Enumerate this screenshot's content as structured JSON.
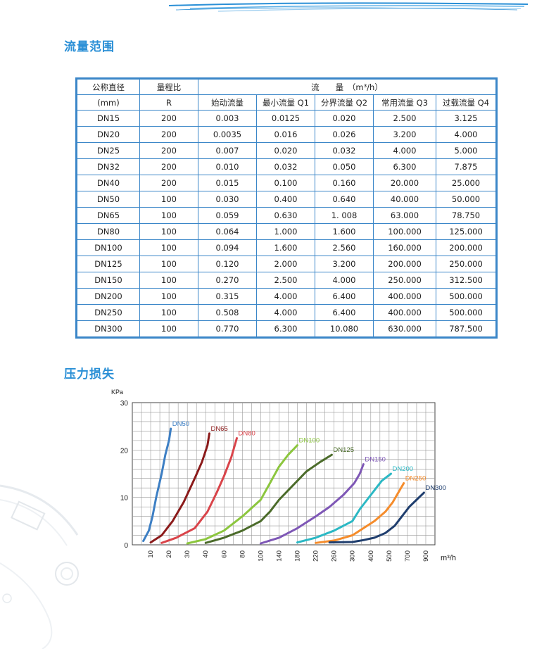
{
  "sections": {
    "flow_title": "流量范围",
    "pressure_title": "压力损失"
  },
  "table": {
    "header_row1": {
      "nominal_diameter": "公称直径",
      "range_ratio": "量程比",
      "flow": "流　　量　（m³/h）"
    },
    "header_row2": {
      "nominal_diameter_unit": "(mm)",
      "range_ratio_unit": "R",
      "cols": [
        "始动流量",
        "最小流量 Q1",
        "分界流量 Q2",
        "常用流量 Q3",
        "过载流量 Q4"
      ]
    },
    "rows": [
      [
        "DN15",
        "200",
        "0.003",
        "0.0125",
        "0.020",
        "2.500",
        "3.125"
      ],
      [
        "DN20",
        "200",
        "0.0035",
        "0.016",
        "0.026",
        "3.200",
        "4.000"
      ],
      [
        "DN25",
        "200",
        "0.007",
        "0.020",
        "0.032",
        "4.000",
        "5.000"
      ],
      [
        "DN32",
        "200",
        "0.010",
        "0.032",
        "0.050",
        "6.300",
        "7.875"
      ],
      [
        "DN40",
        "200",
        "0.015",
        "0.100",
        "0.160",
        "20.000",
        "25.000"
      ],
      [
        "DN50",
        "100",
        "0.030",
        "0.400",
        "0.640",
        "40.000",
        "50.000"
      ],
      [
        "DN65",
        "100",
        "0.059",
        "0.630",
        "1. 008",
        "63.000",
        "78.750"
      ],
      [
        "DN80",
        "100",
        "0.064",
        "1.000",
        "1.600",
        "100.000",
        "125.000"
      ],
      [
        "DN100",
        "100",
        "0.094",
        "1.600",
        "2.560",
        "160.000",
        "200.000"
      ],
      [
        "DN125",
        "100",
        "0.120",
        "2.000",
        "3.200",
        "200.000",
        "250.000"
      ],
      [
        "DN150",
        "100",
        "0.270",
        "2.500",
        "4.000",
        "250.000",
        "312.500"
      ],
      [
        "DN200",
        "100",
        "0.315",
        "4.000",
        "6.400",
        "400.000",
        "500.000"
      ],
      [
        "DN250",
        "100",
        "0.508",
        "4.000",
        "6.400",
        "400.000",
        "500.000"
      ],
      [
        "DN300",
        "100",
        "0.770",
        "6.300",
        "10.080",
        "630.000",
        "787.500"
      ]
    ]
  },
  "chart_data": {
    "type": "line",
    "title": "",
    "ylabel": "KPa",
    "xlabel": "m³/h",
    "ylim": [
      0,
      30
    ],
    "yticks": [
      "0",
      "10",
      "20",
      "30"
    ],
    "xticks": [
      "10",
      "20",
      "30",
      "40",
      "60",
      "80",
      "100",
      "140",
      "180",
      "220",
      "260",
      "300",
      "400",
      "500",
      "700",
      "900"
    ],
    "grid": true,
    "series": [
      {
        "name": "DN50",
        "color": "#3d7fc4",
        "points": [
          [
            6,
            0.8
          ],
          [
            9,
            3
          ],
          [
            11,
            6
          ],
          [
            13,
            10
          ],
          [
            16,
            15
          ],
          [
            18,
            19
          ],
          [
            20,
            22
          ],
          [
            21,
            24.5
          ]
        ]
      },
      {
        "name": "DN65",
        "color": "#8b1a1a",
        "points": [
          [
            10,
            0.5
          ],
          [
            16,
            2
          ],
          [
            22,
            5
          ],
          [
            28,
            9
          ],
          [
            34,
            14
          ],
          [
            38,
            17.5
          ],
          [
            42,
            21
          ],
          [
            44,
            23.5
          ]
        ]
      },
      {
        "name": "DN80",
        "color": "#d9444a",
        "points": [
          [
            16,
            0.4
          ],
          [
            24,
            1.5
          ],
          [
            34,
            3.5
          ],
          [
            42,
            7
          ],
          [
            52,
            11
          ],
          [
            60,
            14.5
          ],
          [
            68,
            18.5
          ],
          [
            74,
            22.5
          ]
        ]
      },
      {
        "name": "DN100",
        "color": "#8cc63e",
        "points": [
          [
            30,
            0.3
          ],
          [
            40,
            1.2
          ],
          [
            60,
            3
          ],
          [
            80,
            6
          ],
          [
            100,
            9.5
          ],
          [
            120,
            13
          ],
          [
            140,
            16.5
          ],
          [
            160,
            19
          ],
          [
            180,
            21
          ]
        ]
      },
      {
        "name": "DN125",
        "color": "#4b6b2a",
        "points": [
          [
            40,
            0.4
          ],
          [
            60,
            1.5
          ],
          [
            80,
            3
          ],
          [
            100,
            5
          ],
          [
            120,
            7
          ],
          [
            140,
            9.5
          ],
          [
            170,
            12.5
          ],
          [
            200,
            15.5
          ],
          [
            230,
            17.5
          ],
          [
            255,
            19
          ]
        ]
      },
      {
        "name": "DN150",
        "color": "#7e57b6",
        "points": [
          [
            100,
            0.3
          ],
          [
            140,
            1.5
          ],
          [
            180,
            3.5
          ],
          [
            220,
            6
          ],
          [
            250,
            8
          ],
          [
            280,
            10.5
          ],
          [
            310,
            13
          ],
          [
            340,
            15
          ],
          [
            360,
            17
          ]
        ]
      },
      {
        "name": "DN200",
        "color": "#2bb8c4",
        "points": [
          [
            180,
            0.5
          ],
          [
            220,
            1.5
          ],
          [
            260,
            3
          ],
          [
            300,
            5
          ],
          [
            340,
            7.5
          ],
          [
            380,
            9.5
          ],
          [
            420,
            11.5
          ],
          [
            460,
            13.5
          ],
          [
            520,
            15
          ]
        ]
      },
      {
        "name": "DN250",
        "color": "#f58c2b",
        "points": [
          [
            220,
            0.4
          ],
          [
            260,
            0.9
          ],
          [
            300,
            2
          ],
          [
            360,
            3.5
          ],
          [
            420,
            5
          ],
          [
            480,
            7
          ],
          [
            540,
            9
          ],
          [
            600,
            11
          ],
          [
            660,
            13
          ]
        ]
      },
      {
        "name": "DN300",
        "color": "#1f3e6e",
        "points": [
          [
            250,
            0.5
          ],
          [
            300,
            0.6
          ],
          [
            360,
            1
          ],
          [
            420,
            1.5
          ],
          [
            480,
            2.5
          ],
          [
            560,
            4
          ],
          [
            640,
            6
          ],
          [
            720,
            8
          ],
          [
            800,
            9.5
          ],
          [
            880,
            11
          ]
        ]
      }
    ]
  }
}
